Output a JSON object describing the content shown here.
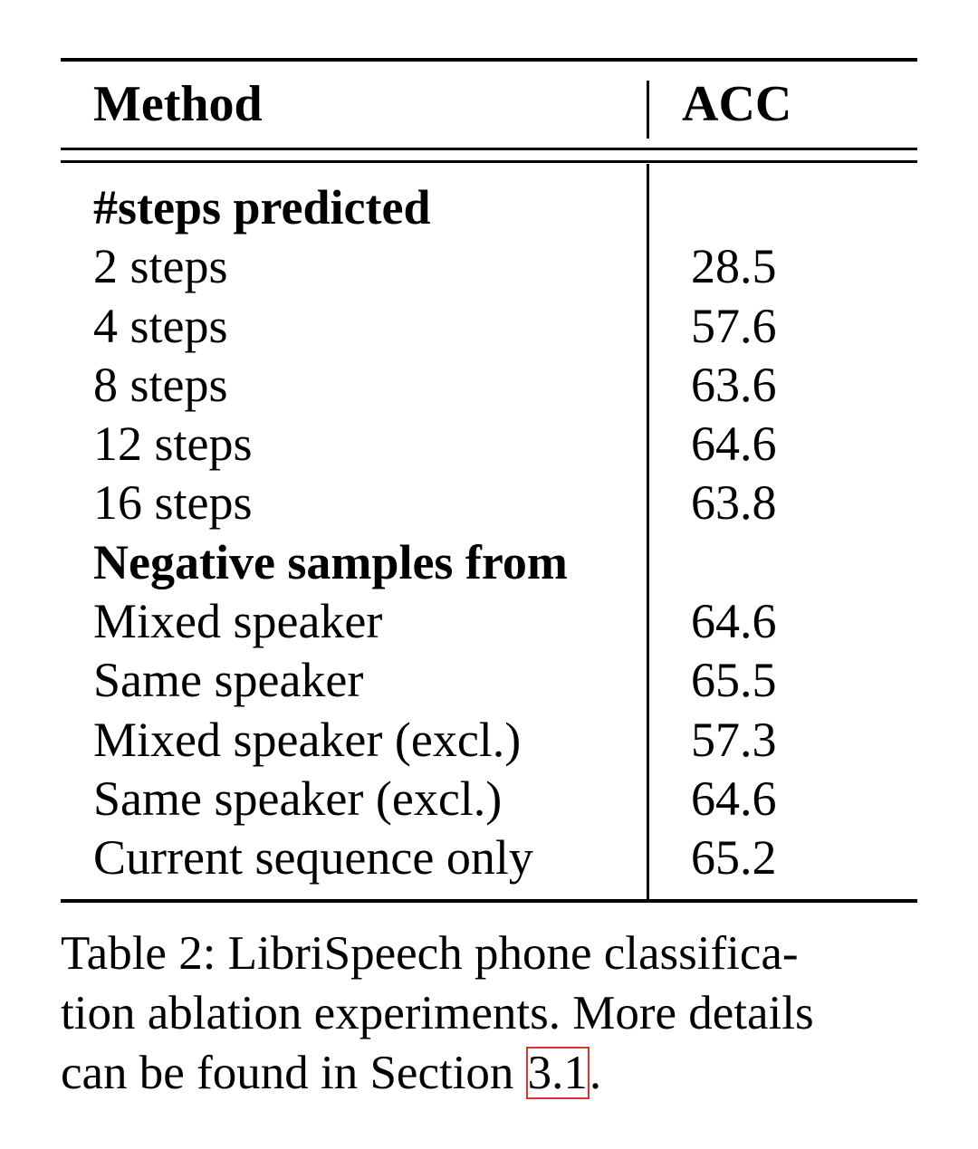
{
  "table": {
    "header": {
      "method": "Method",
      "acc": "ACC"
    },
    "rows": [
      {
        "method": "#steps predicted",
        "acc": "",
        "section": true
      },
      {
        "method": "2 steps",
        "acc": "28.5"
      },
      {
        "method": "4 steps",
        "acc": "57.6"
      },
      {
        "method": "8 steps",
        "acc": "63.6"
      },
      {
        "method": "12 steps",
        "acc": "64.6"
      },
      {
        "method": "16 steps",
        "acc": "63.8"
      },
      {
        "method": "Negative samples from",
        "acc": "",
        "section": true
      },
      {
        "method": "Mixed speaker",
        "acc": "64.6"
      },
      {
        "method": "Same speaker",
        "acc": "65.5"
      },
      {
        "method": "Mixed speaker (excl.)",
        "acc": "57.3"
      },
      {
        "method": "Same speaker (excl.)",
        "acc": "64.6"
      },
      {
        "method": "Current sequence only",
        "acc": "65.2"
      }
    ]
  },
  "caption": {
    "line1": "Table 2: LibriSpeech phone classifica-",
    "line2": "tion ablation experiments. More details",
    "line3_prefix": "can be found in Section ",
    "ref": "3.1",
    "line3_suffix": "."
  },
  "colors": {
    "text": "#000000",
    "ref_box": "#e03030"
  }
}
